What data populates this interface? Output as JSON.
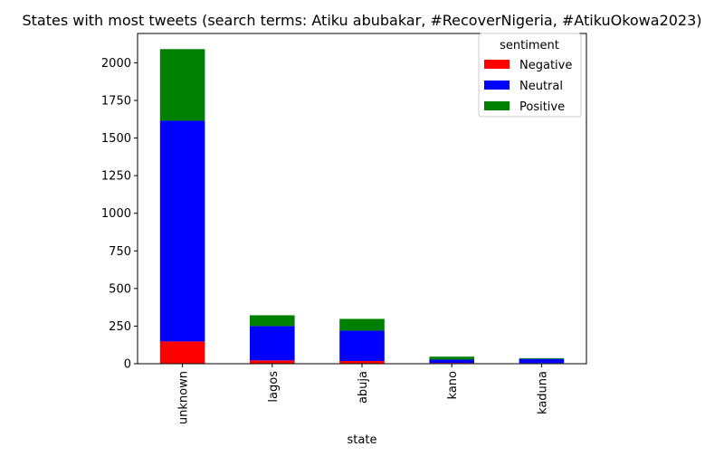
{
  "chart_data": {
    "type": "bar",
    "stacked": true,
    "title": "States with most tweets (search terms: Atiku abubakar, #RecoverNigeria, #AtikuOkowa2023)",
    "xlabel": "state",
    "ylabel": "",
    "categories": [
      "unknown",
      "lagos",
      "abuja",
      "kano",
      "kaduna"
    ],
    "series": [
      {
        "name": "Negative",
        "color": "#ff0000",
        "values": [
          148,
          22,
          18,
          5,
          4
        ]
      },
      {
        "name": "Neutral",
        "color": "#0000ff",
        "values": [
          1467,
          228,
          202,
          22,
          28
        ]
      },
      {
        "name": "Positive",
        "color": "#008000",
        "values": [
          476,
          72,
          78,
          20,
          5
        ]
      }
    ],
    "ylim": [
      0,
      2195
    ],
    "yticks": [
      0,
      250,
      500,
      750,
      1000,
      1250,
      1500,
      1750,
      2000
    ],
    "legend": {
      "title": "sentiment",
      "placement": "top-right"
    },
    "grid": false
  }
}
